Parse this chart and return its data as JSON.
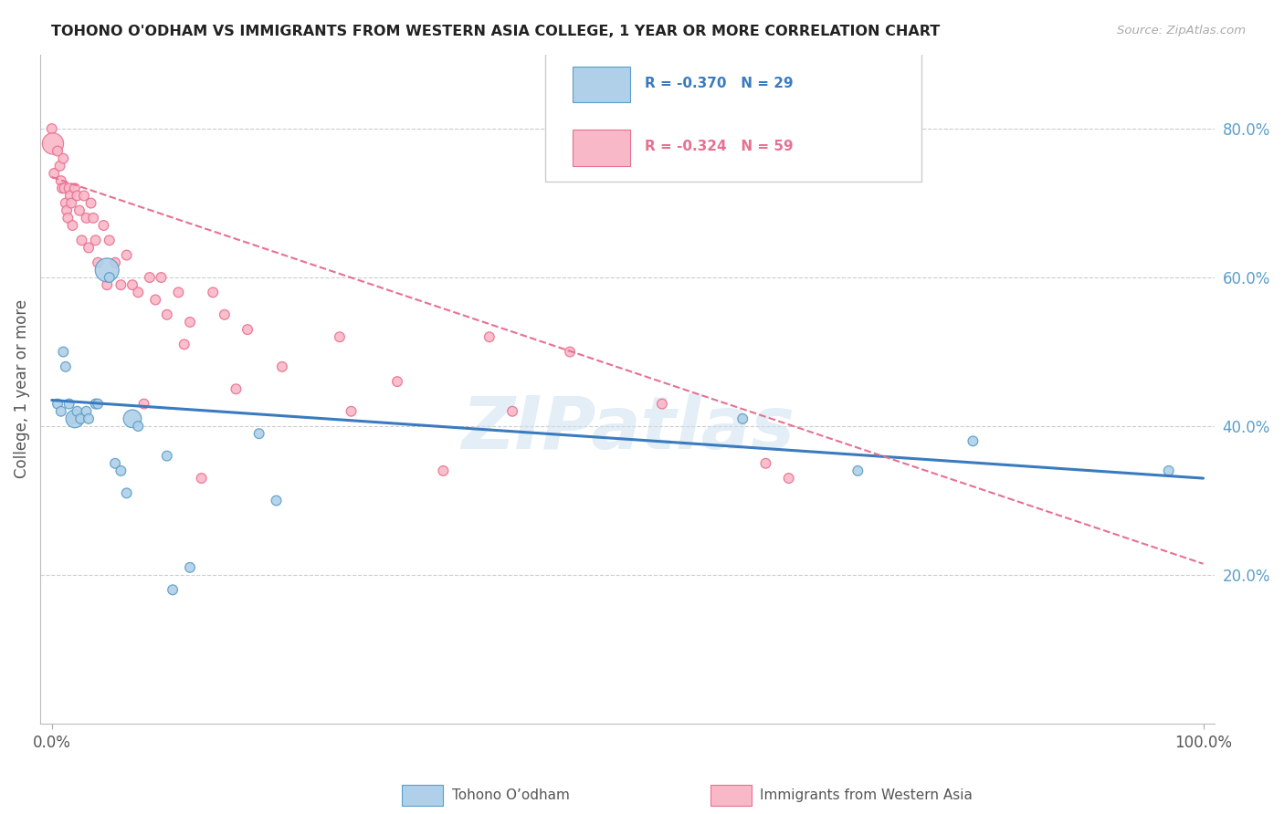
{
  "title": "TOHONO O'ODHAM VS IMMIGRANTS FROM WESTERN ASIA COLLEGE, 1 YEAR OR MORE CORRELATION CHART",
  "source_text": "Source: ZipAtlas.com",
  "ylabel": "College, 1 year or more",
  "legend_label1": "Tohono O’odham",
  "legend_label2": "Immigrants from Western Asia",
  "watermark": "ZIPatlas",
  "blue_R": -0.37,
  "blue_N": 29,
  "pink_R": -0.324,
  "pink_N": 59,
  "blue_color": "#afd0e8",
  "pink_color": "#f9b8c8",
  "blue_edge_color": "#5b9ec9",
  "pink_edge_color": "#e87090",
  "blue_line_color": "#3a7bbf",
  "pink_line_color": "#e87090",
  "right_axis_color": "#5b9ec9",
  "grid_color": "#cccccc",
  "right_yticks": [
    0.2,
    0.4,
    0.6,
    0.8
  ],
  "right_ytick_labels": [
    "20.0%",
    "40.0%",
    "60.0%",
    "80.0%"
  ],
  "xlim": [
    -0.01,
    1.01
  ],
  "ylim": [
    0.0,
    0.9
  ],
  "blue_intercept": 0.435,
  "blue_slope": -0.105,
  "pink_intercept": 0.735,
  "pink_slope": -0.52,
  "blue_points": [
    [
      0.005,
      0.43
    ],
    [
      0.008,
      0.42
    ],
    [
      0.01,
      0.5
    ],
    [
      0.012,
      0.48
    ],
    [
      0.015,
      0.43
    ],
    [
      0.018,
      0.41
    ],
    [
      0.02,
      0.41
    ],
    [
      0.022,
      0.42
    ],
    [
      0.025,
      0.41
    ],
    [
      0.03,
      0.42
    ],
    [
      0.032,
      0.41
    ],
    [
      0.038,
      0.43
    ],
    [
      0.04,
      0.43
    ],
    [
      0.048,
      0.61
    ],
    [
      0.05,
      0.6
    ],
    [
      0.055,
      0.35
    ],
    [
      0.06,
      0.34
    ],
    [
      0.065,
      0.31
    ],
    [
      0.07,
      0.41
    ],
    [
      0.075,
      0.4
    ],
    [
      0.1,
      0.36
    ],
    [
      0.105,
      0.18
    ],
    [
      0.12,
      0.21
    ],
    [
      0.18,
      0.39
    ],
    [
      0.195,
      0.3
    ],
    [
      0.6,
      0.41
    ],
    [
      0.7,
      0.34
    ],
    [
      0.8,
      0.38
    ],
    [
      0.97,
      0.34
    ]
  ],
  "blue_sizes": [
    60,
    60,
    60,
    60,
    60,
    60,
    200,
    60,
    60,
    60,
    60,
    60,
    60,
    350,
    60,
    60,
    60,
    60,
    200,
    60,
    60,
    60,
    60,
    60,
    60,
    60,
    60,
    60,
    60
  ],
  "pink_points": [
    [
      0.0,
      0.8
    ],
    [
      0.001,
      0.78
    ],
    [
      0.002,
      0.74
    ],
    [
      0.005,
      0.77
    ],
    [
      0.007,
      0.75
    ],
    [
      0.008,
      0.73
    ],
    [
      0.009,
      0.72
    ],
    [
      0.01,
      0.76
    ],
    [
      0.011,
      0.72
    ],
    [
      0.012,
      0.7
    ],
    [
      0.013,
      0.69
    ],
    [
      0.014,
      0.68
    ],
    [
      0.015,
      0.72
    ],
    [
      0.016,
      0.71
    ],
    [
      0.017,
      0.7
    ],
    [
      0.018,
      0.67
    ],
    [
      0.02,
      0.72
    ],
    [
      0.022,
      0.71
    ],
    [
      0.024,
      0.69
    ],
    [
      0.026,
      0.65
    ],
    [
      0.028,
      0.71
    ],
    [
      0.03,
      0.68
    ],
    [
      0.032,
      0.64
    ],
    [
      0.034,
      0.7
    ],
    [
      0.036,
      0.68
    ],
    [
      0.038,
      0.65
    ],
    [
      0.04,
      0.62
    ],
    [
      0.045,
      0.67
    ],
    [
      0.048,
      0.59
    ],
    [
      0.05,
      0.65
    ],
    [
      0.055,
      0.62
    ],
    [
      0.06,
      0.59
    ],
    [
      0.065,
      0.63
    ],
    [
      0.07,
      0.59
    ],
    [
      0.075,
      0.58
    ],
    [
      0.08,
      0.43
    ],
    [
      0.085,
      0.6
    ],
    [
      0.09,
      0.57
    ],
    [
      0.095,
      0.6
    ],
    [
      0.1,
      0.55
    ],
    [
      0.11,
      0.58
    ],
    [
      0.115,
      0.51
    ],
    [
      0.12,
      0.54
    ],
    [
      0.13,
      0.33
    ],
    [
      0.14,
      0.58
    ],
    [
      0.15,
      0.55
    ],
    [
      0.16,
      0.45
    ],
    [
      0.17,
      0.53
    ],
    [
      0.2,
      0.48
    ],
    [
      0.25,
      0.52
    ],
    [
      0.26,
      0.42
    ],
    [
      0.3,
      0.46
    ],
    [
      0.34,
      0.34
    ],
    [
      0.38,
      0.52
    ],
    [
      0.4,
      0.42
    ],
    [
      0.45,
      0.5
    ],
    [
      0.53,
      0.43
    ],
    [
      0.62,
      0.35
    ],
    [
      0.64,
      0.33
    ]
  ],
  "pink_sizes": [
    60,
    280,
    60,
    60,
    60,
    60,
    60,
    60,
    60,
    60,
    60,
    60,
    60,
    60,
    60,
    60,
    60,
    60,
    60,
    60,
    60,
    60,
    60,
    60,
    60,
    60,
    60,
    60,
    60,
    60,
    60,
    60,
    60,
    60,
    60,
    60,
    60,
    60,
    60,
    60,
    60,
    60,
    60,
    60,
    60,
    60,
    60,
    60,
    60,
    60,
    60,
    60,
    60,
    60,
    60,
    60,
    60,
    60,
    60
  ]
}
